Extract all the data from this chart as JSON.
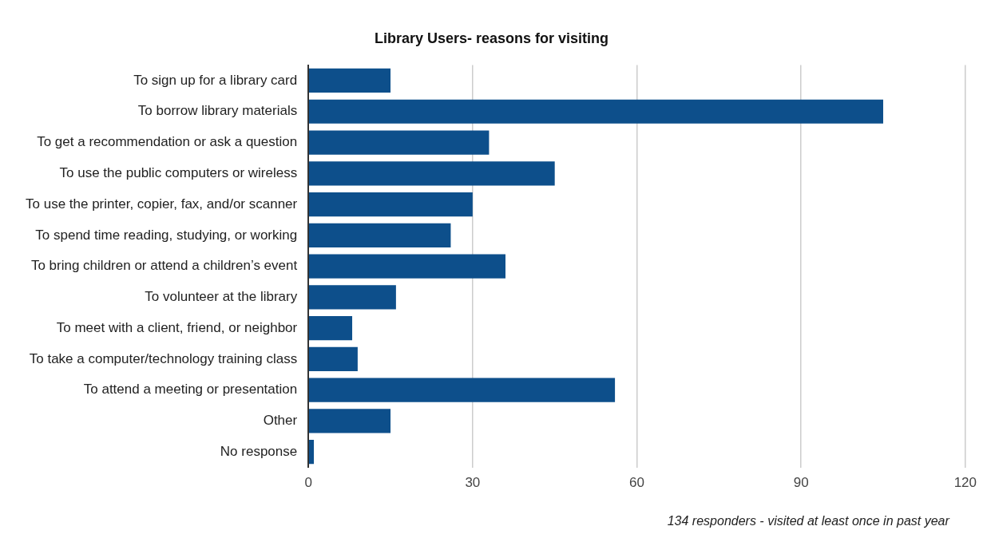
{
  "chart_data": {
    "type": "bar",
    "orientation": "horizontal",
    "title": "Library Users- reasons for visiting",
    "categories": [
      "To sign up for a library card",
      "To borrow library materials",
      "To get a recommendation or ask a question",
      "To use the public computers or wireless",
      "To use the printer, copier, fax, and/or scanner",
      "To spend time reading, studying, or working",
      "To bring children or attend a children’s event",
      "To volunteer at the library",
      "To meet with a client, friend, or neighbor",
      "To take a computer/technology training class",
      "To attend a meeting or presentation",
      "Other",
      "No response"
    ],
    "values": [
      15,
      105,
      33,
      45,
      30,
      26,
      36,
      16,
      8,
      9,
      56,
      15,
      1
    ],
    "color": "#0d4f8b",
    "xlim": [
      0,
      120
    ],
    "xticks": [
      0,
      30,
      60,
      90,
      120
    ],
    "grid": "x",
    "legend": false,
    "annotations": [
      "134 responders - visited at least once in past year"
    ]
  }
}
